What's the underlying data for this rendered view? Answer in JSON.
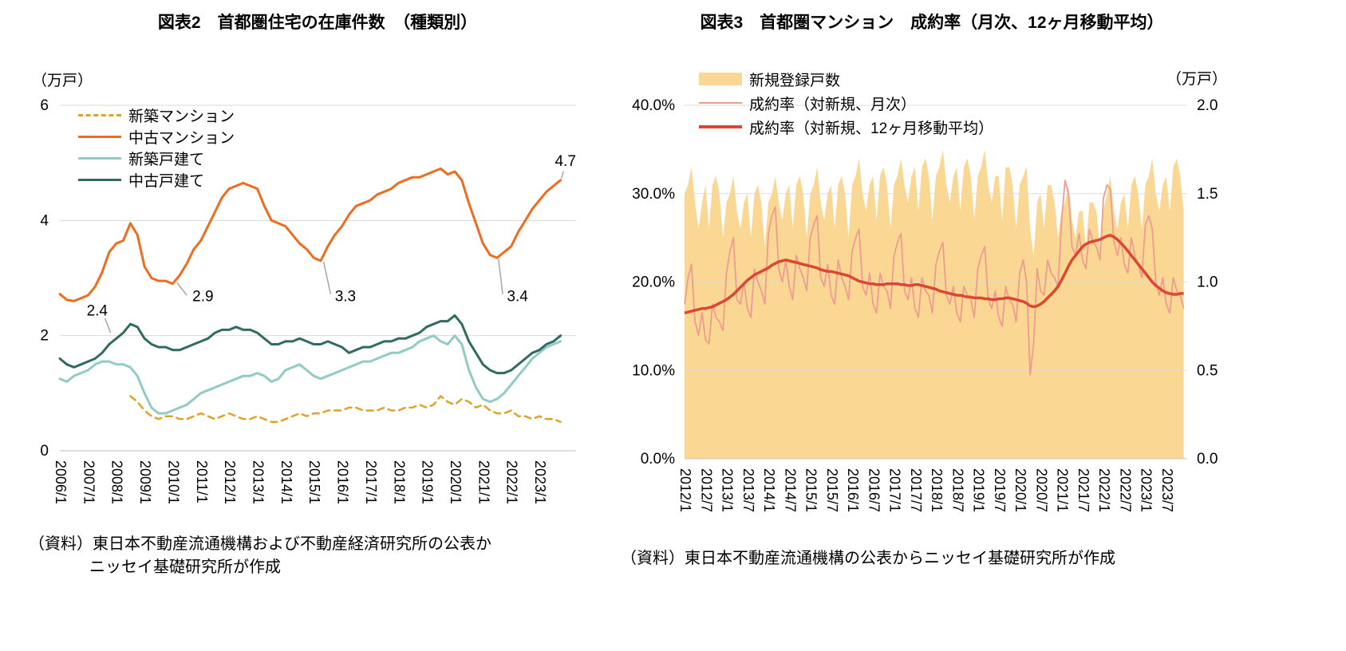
{
  "chart_data": [
    {
      "id": "figure2",
      "type": "line",
      "title": "図表2　首都圏住宅の在庫件数　（種類別）",
      "unit_label": "（万戸）",
      "x_start": 2006,
      "x_step": 0.25,
      "xtick_labels": [
        "2006/1",
        "2007/1",
        "2008/1",
        "2009/1",
        "2010/1",
        "2011/1",
        "2012/1",
        "2013/1",
        "2014/1",
        "2015/1",
        "2016/1",
        "2017/1",
        "2018/1",
        "2019/1",
        "2020/1",
        "2021/1",
        "2022/1",
        "2023/1"
      ],
      "ylim": [
        0,
        6
      ],
      "yticks": [
        0,
        2,
        4,
        6
      ],
      "ytick_labels": [
        "0",
        "2",
        "4",
        "6"
      ],
      "grid": true,
      "legend_position": "top-left-inside",
      "series": [
        {
          "name": "新築マンション",
          "color": "#DFA32B",
          "width": 2.5,
          "dash": "8 6",
          "values": [
            null,
            null,
            null,
            null,
            null,
            null,
            null,
            null,
            null,
            null,
            0.95,
            0.85,
            0.7,
            0.6,
            0.55,
            0.6,
            0.6,
            0.55,
            0.55,
            0.6,
            0.65,
            0.6,
            0.55,
            0.6,
            0.65,
            0.6,
            0.55,
            0.55,
            0.6,
            0.55,
            0.5,
            0.5,
            0.55,
            0.6,
            0.65,
            0.6,
            0.65,
            0.65,
            0.7,
            0.7,
            0.7,
            0.75,
            0.75,
            0.7,
            0.7,
            0.7,
            0.75,
            0.7,
            0.7,
            0.75,
            0.75,
            0.8,
            0.75,
            0.8,
            0.95,
            0.85,
            0.8,
            0.9,
            0.85,
            0.75,
            0.8,
            0.7,
            0.65,
            0.65,
            0.7,
            0.6,
            0.6,
            0.55,
            0.6,
            0.55,
            0.55,
            0.5
          ]
        },
        {
          "name": "中古マンション",
          "color": "#ED6C1E",
          "width": 3,
          "dash": null,
          "values": [
            2.72,
            2.62,
            2.6,
            2.65,
            2.7,
            2.85,
            3.1,
            3.45,
            3.6,
            3.65,
            3.95,
            3.75,
            3.2,
            3.0,
            2.95,
            2.95,
            2.9,
            3.05,
            3.25,
            3.5,
            3.65,
            3.9,
            4.15,
            4.4,
            4.55,
            4.6,
            4.65,
            4.6,
            4.55,
            4.25,
            4.0,
            3.95,
            3.9,
            3.75,
            3.6,
            3.5,
            3.35,
            3.3,
            3.55,
            3.75,
            3.9,
            4.1,
            4.25,
            4.3,
            4.35,
            4.45,
            4.5,
            4.55,
            4.65,
            4.7,
            4.75,
            4.75,
            4.8,
            4.85,
            4.9,
            4.8,
            4.85,
            4.7,
            4.3,
            3.95,
            3.6,
            3.4,
            3.35,
            3.45,
            3.55,
            3.8,
            4.0,
            4.2,
            4.35,
            4.5,
            4.6,
            4.7
          ]
        },
        {
          "name": "新築戸建て",
          "color": "#92CBC3",
          "width": 3,
          "dash": null,
          "values": [
            1.25,
            1.2,
            1.3,
            1.35,
            1.4,
            1.5,
            1.55,
            1.55,
            1.5,
            1.5,
            1.45,
            1.3,
            1.0,
            0.75,
            0.65,
            0.65,
            0.7,
            0.75,
            0.8,
            0.9,
            1.0,
            1.05,
            1.1,
            1.15,
            1.2,
            1.25,
            1.3,
            1.3,
            1.35,
            1.3,
            1.2,
            1.25,
            1.4,
            1.45,
            1.5,
            1.4,
            1.3,
            1.25,
            1.3,
            1.35,
            1.4,
            1.45,
            1.5,
            1.55,
            1.55,
            1.6,
            1.65,
            1.7,
            1.7,
            1.75,
            1.8,
            1.9,
            1.95,
            2.0,
            1.9,
            1.85,
            2.0,
            1.85,
            1.4,
            1.1,
            0.9,
            0.85,
            0.9,
            1.0,
            1.15,
            1.3,
            1.45,
            1.6,
            1.7,
            1.8,
            1.85,
            1.9
          ]
        },
        {
          "name": "中古戸建て",
          "color": "#2F6B60",
          "width": 3,
          "dash": null,
          "values": [
            1.6,
            1.5,
            1.45,
            1.5,
            1.55,
            1.6,
            1.7,
            1.85,
            1.95,
            2.05,
            2.2,
            2.15,
            1.95,
            1.85,
            1.8,
            1.8,
            1.75,
            1.75,
            1.8,
            1.85,
            1.9,
            1.95,
            2.05,
            2.1,
            2.1,
            2.15,
            2.1,
            2.1,
            2.05,
            1.95,
            1.85,
            1.85,
            1.9,
            1.9,
            1.95,
            1.9,
            1.85,
            1.85,
            1.9,
            1.85,
            1.8,
            1.7,
            1.75,
            1.8,
            1.8,
            1.85,
            1.9,
            1.9,
            1.95,
            1.95,
            2.0,
            2.05,
            2.15,
            2.2,
            2.25,
            2.25,
            2.35,
            2.2,
            1.9,
            1.7,
            1.5,
            1.4,
            1.35,
            1.35,
            1.4,
            1.5,
            1.6,
            1.7,
            1.75,
            1.85,
            1.9,
            2.0
          ]
        }
      ],
      "annotations": [
        {
          "text": "2.4",
          "x": 2006.95,
          "y": 2.35,
          "leader": [
            2007.6,
            2.3,
            2007.8,
            2.05
          ]
        },
        {
          "text": "2.9",
          "x": 2010.7,
          "y": 2.6,
          "leader": [
            2010.15,
            2.92,
            2010.5,
            2.7
          ]
        },
        {
          "text": "3.3",
          "x": 2015.75,
          "y": 2.6,
          "leader": [
            2015.35,
            3.28,
            2015.6,
            2.72
          ]
        },
        {
          "text": "3.4",
          "x": 2021.85,
          "y": 2.6,
          "leader": [
            2021.55,
            3.33,
            2021.7,
            2.72
          ]
        },
        {
          "text": "4.7",
          "x": 2023.55,
          "y": 4.95,
          "leader": [
            2023.78,
            4.73,
            2023.85,
            4.85
          ]
        }
      ],
      "source_line1": "（資料）東日本不動産流通機構および不動産経済研究所の公表か",
      "source_line2": "ニッセイ基礎研究所が作成"
    },
    {
      "id": "figure3",
      "type": "combo",
      "title": "図表3　首都圏マンション　成約率（月次、12ヶ月移動平均）",
      "unit_label_right": "（万戸）",
      "x_start": 2012,
      "x_step": 0.0833333,
      "xtick_labels": [
        "2012/1",
        "2012/7",
        "2013/1",
        "2013/7",
        "2014/1",
        "2014/7",
        "2015/1",
        "2015/7",
        "2016/1",
        "2016/7",
        "2017/1",
        "2017/7",
        "2018/1",
        "2018/7",
        "2019/1",
        "2019/7",
        "2020/1",
        "2020/7",
        "2021/1",
        "2021/7",
        "2022/1",
        "2022/7",
        "2023/1",
        "2023/7"
      ],
      "ylim_left": [
        0,
        40
      ],
      "yticks_left": [
        0,
        10,
        20,
        30,
        40
      ],
      "ytick_labels_left": [
        "0.0%",
        "10.0%",
        "20.0%",
        "30.0%",
        "40.0%"
      ],
      "ylim_right": [
        0,
        2
      ],
      "ytick_labels_right": [
        "0.0",
        "0.5",
        "1.0",
        "1.5",
        "2.0"
      ],
      "grid": true,
      "legend_position": "top-left-inside",
      "series": [
        {
          "name": "新規登録戸数",
          "kind": "area",
          "axis": "right",
          "color": "#FAD894",
          "values": [
            1.5,
            1.55,
            1.65,
            1.45,
            1.3,
            1.45,
            1.55,
            1.3,
            1.55,
            1.6,
            1.5,
            1.25,
            1.45,
            1.5,
            1.6,
            1.4,
            1.3,
            1.45,
            1.5,
            1.25,
            1.5,
            1.55,
            1.45,
            1.2,
            1.45,
            1.5,
            1.6,
            1.45,
            1.35,
            1.5,
            1.55,
            1.3,
            1.55,
            1.6,
            1.5,
            1.25,
            1.5,
            1.55,
            1.65,
            1.45,
            1.35,
            1.5,
            1.55,
            1.3,
            1.55,
            1.6,
            1.5,
            1.25,
            1.55,
            1.6,
            1.7,
            1.5,
            1.4,
            1.55,
            1.6,
            1.35,
            1.6,
            1.65,
            1.55,
            1.3,
            1.55,
            1.6,
            1.7,
            1.55,
            1.45,
            1.6,
            1.65,
            1.4,
            1.65,
            1.7,
            1.6,
            1.35,
            1.6,
            1.65,
            1.75,
            1.55,
            1.45,
            1.6,
            1.65,
            1.4,
            1.65,
            1.7,
            1.6,
            1.35,
            1.6,
            1.65,
            1.75,
            1.55,
            1.45,
            1.6,
            1.6,
            1.35,
            1.65,
            1.65,
            1.55,
            1.3,
            1.55,
            1.6,
            1.65,
            1.3,
            1.15,
            1.45,
            1.5,
            1.3,
            1.55,
            1.55,
            1.45,
            1.25,
            1.4,
            1.45,
            1.55,
            1.35,
            1.25,
            1.4,
            1.4,
            1.2,
            1.45,
            1.45,
            1.4,
            1.2,
            1.4,
            1.5,
            1.6,
            1.4,
            1.3,
            1.45,
            1.5,
            1.3,
            1.55,
            1.6,
            1.5,
            1.3,
            1.55,
            1.6,
            1.7,
            1.5,
            1.4,
            1.55,
            1.6,
            1.4,
            1.65,
            1.7,
            1.6,
            1.4
          ]
        },
        {
          "name": "成約率（対新規、月次）",
          "kind": "line",
          "axis": "left",
          "color": "#F09B92",
          "width": 1.8,
          "values": [
            17.5,
            20.5,
            22.0,
            15.5,
            14.0,
            16.5,
            13.5,
            13.0,
            17.5,
            16.0,
            15.5,
            14.5,
            21.0,
            23.5,
            25.0,
            18.0,
            17.5,
            20.0,
            17.0,
            16.0,
            21.5,
            20.0,
            19.0,
            17.5,
            25.5,
            27.5,
            28.5,
            21.5,
            20.0,
            22.5,
            19.5,
            18.0,
            23.0,
            21.5,
            20.5,
            19.0,
            25.0,
            26.5,
            27.5,
            20.5,
            19.5,
            22.0,
            18.5,
            17.5,
            22.5,
            20.5,
            19.5,
            18.0,
            23.5,
            25.0,
            26.0,
            19.5,
            18.5,
            21.0,
            17.5,
            16.5,
            21.0,
            19.5,
            19.0,
            17.0,
            23.0,
            24.5,
            25.5,
            19.0,
            18.0,
            20.5,
            17.0,
            16.0,
            20.5,
            19.0,
            18.5,
            16.5,
            22.0,
            23.5,
            24.5,
            18.5,
            17.5,
            19.5,
            16.5,
            15.5,
            19.5,
            18.5,
            18.0,
            16.0,
            21.5,
            23.0,
            24.0,
            18.0,
            17.0,
            19.0,
            16.0,
            15.0,
            19.5,
            18.0,
            17.5,
            15.5,
            21.0,
            22.5,
            20.0,
            9.5,
            13.0,
            21.5,
            19.0,
            18.5,
            22.5,
            21.0,
            20.5,
            19.5,
            27.0,
            31.5,
            30.0,
            24.0,
            23.0,
            25.5,
            22.5,
            21.5,
            26.0,
            24.5,
            24.0,
            22.5,
            29.5,
            31.0,
            30.5,
            24.5,
            23.0,
            25.0,
            22.0,
            21.0,
            25.0,
            23.0,
            22.0,
            20.5,
            26.5,
            27.5,
            26.0,
            20.0,
            18.5,
            20.5,
            17.5,
            16.5,
            20.5,
            19.0,
            18.5,
            17.0
          ]
        },
        {
          "name": "成約率（対新規、12ヶ月移動平均）",
          "kind": "line",
          "axis": "left",
          "color": "#DC4733",
          "width": 3.5,
          "values": [
            16.5,
            16.6,
            16.7,
            16.8,
            16.9,
            17.0,
            17.0,
            17.1,
            17.2,
            17.4,
            17.6,
            17.8,
            18.0,
            18.3,
            18.6,
            19.0,
            19.4,
            19.8,
            20.2,
            20.5,
            20.8,
            21.0,
            21.2,
            21.4,
            21.6,
            21.9,
            22.1,
            22.3,
            22.4,
            22.5,
            22.4,
            22.3,
            22.2,
            22.1,
            22.0,
            21.9,
            21.8,
            21.7,
            21.6,
            21.4,
            21.3,
            21.2,
            21.2,
            21.1,
            21.0,
            20.9,
            20.8,
            20.7,
            20.5,
            20.3,
            20.1,
            20.0,
            19.9,
            19.8,
            19.8,
            19.7,
            19.7,
            19.7,
            19.8,
            19.8,
            19.8,
            19.8,
            19.7,
            19.7,
            19.6,
            19.6,
            19.7,
            19.7,
            19.6,
            19.5,
            19.4,
            19.3,
            19.2,
            19.0,
            18.9,
            18.8,
            18.7,
            18.6,
            18.5,
            18.5,
            18.4,
            18.3,
            18.3,
            18.2,
            18.2,
            18.2,
            18.1,
            18.1,
            18.0,
            18.0,
            18.1,
            18.1,
            18.2,
            18.2,
            18.1,
            18.0,
            17.9,
            17.8,
            17.6,
            17.3,
            17.2,
            17.3,
            17.5,
            17.8,
            18.2,
            18.6,
            19.0,
            19.5,
            20.2,
            21.0,
            21.8,
            22.5,
            23.0,
            23.5,
            24.0,
            24.3,
            24.5,
            24.6,
            24.7,
            24.8,
            25.0,
            25.2,
            25.3,
            25.1,
            24.8,
            24.4,
            24.0,
            23.5,
            23.0,
            22.5,
            22.0,
            21.5,
            21.0,
            20.5,
            20.0,
            19.6,
            19.3,
            19.0,
            18.8,
            18.7,
            18.6,
            18.6,
            18.7,
            18.7
          ]
        }
      ],
      "source": "（資料）東日本不動産流通機構の公表からニッセイ基礎研究所が作成"
    }
  ]
}
